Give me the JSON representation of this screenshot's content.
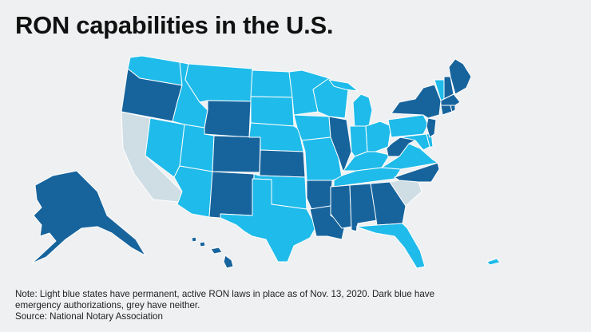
{
  "title": "RON capabilities in the U.S.",
  "colors": {
    "permanent": "#1fbbea",
    "emergency": "#17649d",
    "neither": "#cfdde5",
    "background": "#eef0f1"
  },
  "state_status": {
    "WA": "permanent",
    "OR": "emergency",
    "CA": "neither",
    "NV": "permanent",
    "ID": "permanent",
    "MT": "permanent",
    "WY": "emergency",
    "UT": "permanent",
    "AZ": "permanent",
    "CO": "emergency",
    "NM": "emergency",
    "ND": "permanent",
    "SD": "permanent",
    "NE": "permanent",
    "KS": "emergency",
    "OK": "permanent",
    "TX": "permanent",
    "MN": "permanent",
    "IA": "permanent",
    "MO": "permanent",
    "AR": "emergency",
    "LA": "emergency",
    "WI": "permanent",
    "IL": "emergency",
    "MI": "permanent",
    "IN": "permanent",
    "OH": "permanent",
    "KY": "permanent",
    "TN": "permanent",
    "MS": "emergency",
    "AL": "emergency",
    "GA": "emergency",
    "FL": "permanent",
    "SC": "neither",
    "NC": "emergency",
    "VA": "permanent",
    "WV": "emergency",
    "PA": "permanent",
    "NY": "emergency",
    "VT": "permanent",
    "NH": "emergency",
    "ME": "emergency",
    "MA": "emergency",
    "CT": "emergency",
    "RI": "emergency",
    "NJ": "emergency",
    "DE": "permanent",
    "MD": "permanent",
    "AK": "emergency",
    "HI": "emergency",
    "PR": "permanent"
  },
  "notes": {
    "line1": "Note: Light blue states have permanent, active RON laws in place as of Nov. 13, 2020. Dark blue have",
    "line2": "emergency authorizations, grey have neither.",
    "source": "Source: National Notary Association"
  }
}
